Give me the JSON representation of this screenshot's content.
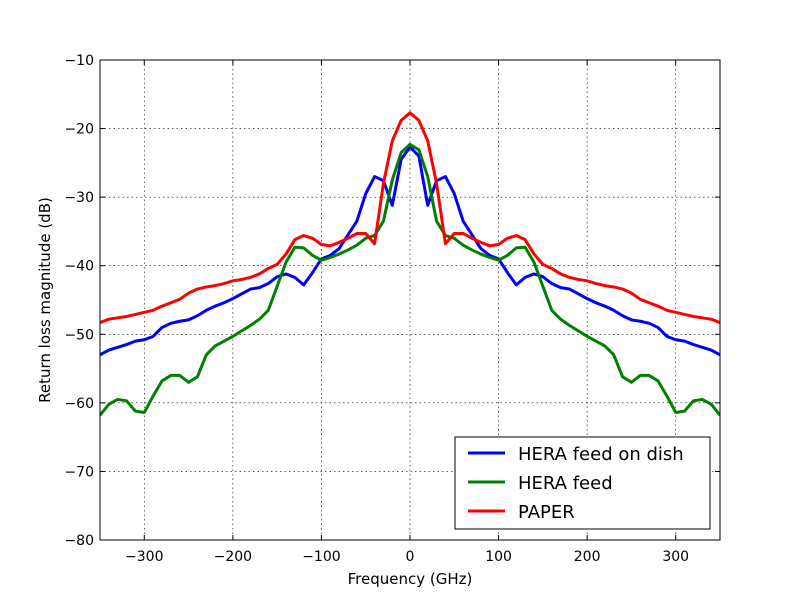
{
  "chart_data": {
    "type": "line",
    "title": "",
    "xlabel": "Frequency (GHz)",
    "ylabel": "Return loss magnitude (dB)",
    "xlim": [
      -350,
      350
    ],
    "ylim": [
      -80,
      -10
    ],
    "xticks": [
      -300,
      -200,
      -100,
      0,
      100,
      200,
      300
    ],
    "yticks": [
      -80,
      -70,
      -60,
      -50,
      -40,
      -30,
      -20,
      -10
    ],
    "xtick_labels": [
      "−300",
      "−200",
      "−100",
      "0",
      "100",
      "200",
      "300"
    ],
    "ytick_labels": [
      "−80",
      "−70",
      "−60",
      "−50",
      "−40",
      "−30",
      "−20",
      "−10"
    ],
    "grid": true,
    "legend_position": "lower-right",
    "series": [
      {
        "name": "HERA feed on dish",
        "color": "#0000ff",
        "x": [
          -350,
          -340,
          -330,
          -320,
          -310,
          -300,
          -290,
          -280,
          -270,
          -260,
          -250,
          -240,
          -230,
          -220,
          -210,
          -200,
          -190,
          -180,
          -170,
          -160,
          -150,
          -140,
          -130,
          -120,
          -110,
          -100,
          -90,
          -80,
          -70,
          -60,
          -50,
          -40,
          -30,
          -20,
          -10,
          0,
          10,
          20,
          30,
          40,
          50,
          60,
          70,
          80,
          90,
          100,
          110,
          120,
          130,
          140,
          150,
          160,
          170,
          180,
          190,
          200,
          210,
          220,
          230,
          240,
          250,
          260,
          270,
          280,
          290,
          300,
          310,
          320,
          330,
          340,
          350
        ],
        "y": [
          -53.0,
          -52.3,
          -51.9,
          -51.5,
          -51.0,
          -50.8,
          -50.3,
          -49.0,
          -48.4,
          -48.1,
          -47.9,
          -47.3,
          -46.5,
          -45.9,
          -45.4,
          -44.8,
          -44.1,
          -43.4,
          -43.2,
          -42.6,
          -41.6,
          -41.2,
          -41.7,
          -42.8,
          -41.0,
          -39.0,
          -38.5,
          -37.5,
          -35.5,
          -33.5,
          -29.5,
          -27.0,
          -27.6,
          -31.2,
          -24.5,
          -22.7,
          -24.0,
          -31.2,
          -27.6,
          -27.0,
          -29.5,
          -33.5,
          -35.5,
          -37.5,
          -38.5,
          -39.0,
          -41.0,
          -42.8,
          -41.7,
          -41.2,
          -41.6,
          -42.6,
          -43.2,
          -43.4,
          -44.1,
          -44.8,
          -45.4,
          -45.9,
          -46.5,
          -47.3,
          -47.9,
          -48.1,
          -48.4,
          -49.0,
          -50.3,
          -50.8,
          -51.0,
          -51.5,
          -51.9,
          -52.3,
          -53.0
        ]
      },
      {
        "name": "HERA feed",
        "color": "#008000",
        "x": [
          -350,
          -340,
          -330,
          -320,
          -310,
          -300,
          -290,
          -280,
          -270,
          -260,
          -250,
          -240,
          -230,
          -220,
          -210,
          -200,
          -190,
          -180,
          -170,
          -160,
          -150,
          -140,
          -130,
          -120,
          -110,
          -100,
          -90,
          -80,
          -70,
          -60,
          -50,
          -40,
          -30,
          -20,
          -10,
          0,
          10,
          20,
          30,
          40,
          50,
          60,
          70,
          80,
          90,
          100,
          110,
          120,
          130,
          140,
          150,
          160,
          170,
          180,
          190,
          200,
          210,
          220,
          230,
          240,
          250,
          260,
          270,
          280,
          290,
          300,
          310,
          320,
          330,
          340,
          350
        ],
        "y": [
          -61.8,
          -60.2,
          -59.5,
          -59.7,
          -61.2,
          -61.4,
          -59.0,
          -56.8,
          -56.0,
          -56.0,
          -57.0,
          -56.2,
          -53.0,
          -51.7,
          -51.0,
          -50.3,
          -49.5,
          -48.7,
          -47.8,
          -46.5,
          -43.0,
          -39.5,
          -37.3,
          -37.4,
          -38.5,
          -39.2,
          -38.8,
          -38.3,
          -37.7,
          -37.0,
          -36.0,
          -35.6,
          -33.5,
          -27.5,
          -23.5,
          -22.3,
          -23.1,
          -27.0,
          -33.5,
          -35.6,
          -36.0,
          -37.0,
          -37.7,
          -38.3,
          -38.8,
          -39.2,
          -38.5,
          -37.4,
          -37.3,
          -39.5,
          -43.0,
          -46.5,
          -47.8,
          -48.7,
          -49.5,
          -50.3,
          -51.0,
          -51.7,
          -53.0,
          -56.2,
          -57.0,
          -56.0,
          -56.0,
          -56.8,
          -59.0,
          -61.4,
          -61.2,
          -59.7,
          -59.5,
          -60.2,
          -61.8
        ]
      },
      {
        "name": "PAPER",
        "color": "#ff0000",
        "x": [
          -350,
          -340,
          -330,
          -320,
          -310,
          -300,
          -290,
          -280,
          -270,
          -260,
          -250,
          -240,
          -230,
          -220,
          -210,
          -200,
          -190,
          -180,
          -170,
          -160,
          -150,
          -140,
          -130,
          -120,
          -110,
          -100,
          -90,
          -80,
          -70,
          -60,
          -50,
          -40,
          -30,
          -20,
          -10,
          0,
          10,
          20,
          30,
          40,
          50,
          60,
          70,
          80,
          90,
          100,
          110,
          120,
          130,
          140,
          150,
          160,
          170,
          180,
          190,
          200,
          210,
          220,
          230,
          240,
          250,
          260,
          270,
          280,
          290,
          300,
          310,
          320,
          330,
          340,
          350
        ],
        "y": [
          -48.3,
          -47.8,
          -47.6,
          -47.4,
          -47.1,
          -46.8,
          -46.5,
          -45.9,
          -45.4,
          -44.9,
          -44.0,
          -43.4,
          -43.1,
          -42.9,
          -42.6,
          -42.2,
          -42.0,
          -41.7,
          -41.2,
          -40.4,
          -39.8,
          -38.3,
          -36.2,
          -35.6,
          -36.0,
          -36.9,
          -37.1,
          -36.6,
          -36.0,
          -35.3,
          -35.3,
          -36.8,
          -28.0,
          -21.8,
          -18.8,
          -17.7,
          -18.8,
          -21.8,
          -28.0,
          -36.8,
          -35.3,
          -35.3,
          -36.0,
          -36.6,
          -37.1,
          -36.9,
          -36.0,
          -35.6,
          -36.2,
          -38.3,
          -39.8,
          -40.4,
          -41.2,
          -41.7,
          -42.0,
          -42.2,
          -42.6,
          -42.9,
          -43.1,
          -43.4,
          -44.0,
          -44.9,
          -45.4,
          -45.9,
          -46.5,
          -46.8,
          -47.1,
          -47.4,
          -47.6,
          -47.8,
          -48.3
        ]
      }
    ]
  }
}
